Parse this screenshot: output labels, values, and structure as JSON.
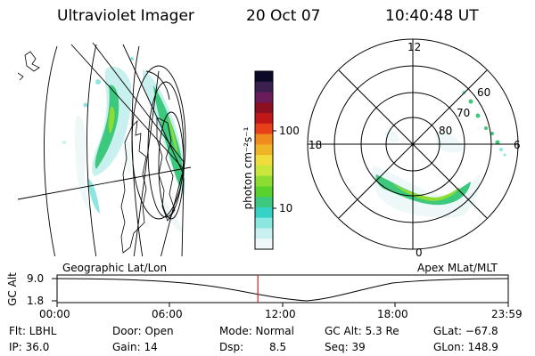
{
  "header": {
    "title": "Ultraviolet Imager",
    "date": "20 Oct 07",
    "time": "10:40:48 UT"
  },
  "colorbar": {
    "label": "photon cm⁻²s⁻¹",
    "ticks": [
      "100",
      "10"
    ],
    "colors": [
      "#0a0a28",
      "#3a1f4f",
      "#6a1b5a",
      "#8b1020",
      "#c01818",
      "#e8401a",
      "#f08c1e",
      "#f0b428",
      "#f0dc3c",
      "#c8e63c",
      "#8cdc32",
      "#5ad22d",
      "#3cc87d",
      "#36d2c8",
      "#8ce6e0",
      "#c8f0ee",
      "#eef8f8"
    ]
  },
  "left_map": {
    "label": "Geographic Lat/Lon"
  },
  "polar_plot": {
    "label": "Apex MLat/MLT",
    "mlt_labels": [
      "12",
      "18",
      "6",
      "0"
    ],
    "lat_labels": [
      "60",
      "70",
      "80"
    ]
  },
  "altitude_plot": {
    "ylabel": "GC Alt",
    "yticks": [
      "9.0",
      "1.8"
    ],
    "xticks": [
      "00:00",
      "06:00",
      "12:00",
      "18:00",
      "23:59"
    ],
    "current_marker_hours": 10.68,
    "marker_color": "#d02020"
  },
  "footer": {
    "filter": "Flt: LBHL",
    "ip": "IP: 36.0",
    "door": "Door: Open",
    "gain": "Gain: 14",
    "mode": "Mode: Normal",
    "dsp_label": "Dsp:",
    "dsp_value": "8.5",
    "gc_alt": "GC Alt: 5.3 Re",
    "seq": "Seq: 39",
    "glat": "GLat: −67.8",
    "glon": "GLon: 148.9"
  }
}
